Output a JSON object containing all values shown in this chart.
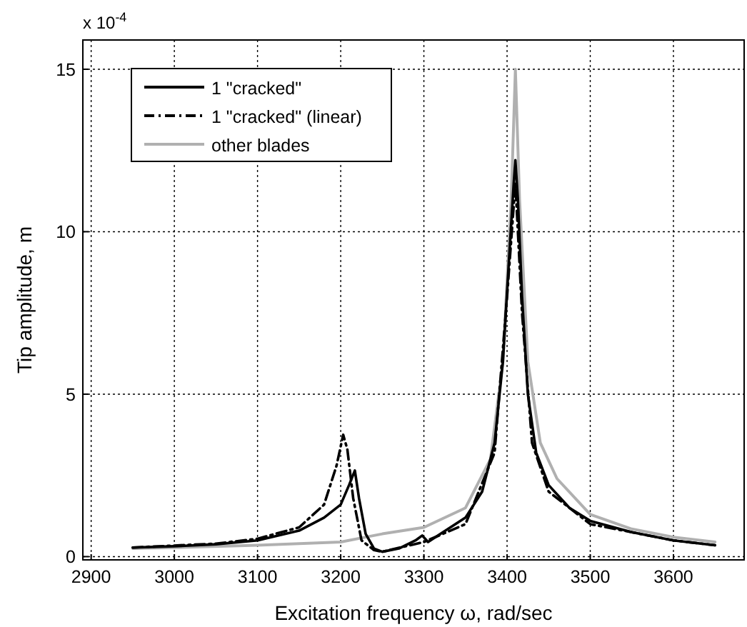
{
  "chart_data": {
    "type": "line",
    "xlabel": "Excitation frequency ω, rad/sec",
    "ylabel": "Tip amplitude, m",
    "annotations": [
      "x 10$^{-4}$"
    ],
    "xlim": [
      2890,
      3685
    ],
    "xticks": [
      2900,
      3000,
      3100,
      3200,
      3300,
      3400,
      3500,
      3600
    ],
    "ylim": [
      -0.1,
      15.9
    ],
    "yticks": [
      0,
      5,
      10,
      15
    ],
    "grid": true,
    "legend": "top left",
    "series": [
      {
        "name": "1 \"cracked\"",
        "color": "#000000",
        "line_style": "solid",
        "x": [
          2950,
          3000,
          3050,
          3100,
          3150,
          3180,
          3200,
          3210,
          3217,
          3222,
          3230,
          3240,
          3250,
          3270,
          3290,
          3298,
          3305,
          3320,
          3350,
          3370,
          3385,
          3395,
          3402,
          3408,
          3410,
          3413,
          3418,
          3425,
          3435,
          3450,
          3475,
          3500,
          3550,
          3600,
          3650
        ],
        "values": [
          0.28,
          0.32,
          0.38,
          0.5,
          0.8,
          1.2,
          1.6,
          2.2,
          2.65,
          1.8,
          0.7,
          0.25,
          0.15,
          0.25,
          0.5,
          0.65,
          0.45,
          0.7,
          1.2,
          2.0,
          3.5,
          6,
          9,
          11.5,
          12.2,
          11,
          8,
          5,
          3.2,
          2.2,
          1.5,
          1.1,
          0.75,
          0.5,
          0.35
        ]
      },
      {
        "name": "1 \"cracked\" (linear)",
        "color": "#000000",
        "line_style": "dashdot",
        "x": [
          2950,
          3050,
          3100,
          3150,
          3180,
          3195,
          3203,
          3208,
          3215,
          3225,
          3240,
          3250,
          3300,
          3350,
          3385,
          3400,
          3410,
          3418,
          3430,
          3450,
          3500,
          3600,
          3650
        ],
        "values": [
          0.28,
          0.4,
          0.55,
          0.9,
          1.6,
          2.8,
          3.75,
          3.3,
          1.8,
          0.5,
          0.2,
          0.15,
          0.45,
          1.0,
          3.2,
          8,
          11.5,
          7.5,
          3.5,
          2.0,
          1.0,
          0.5,
          0.35
        ]
      },
      {
        "name": "other blades",
        "color": "#b0b0b0",
        "line_style": "solid",
        "x": [
          2950,
          3000,
          3100,
          3200,
          3230,
          3250,
          3300,
          3350,
          3380,
          3395,
          3405,
          3410,
          3415,
          3425,
          3440,
          3460,
          3500,
          3550,
          3600,
          3650
        ],
        "values": [
          0.25,
          0.28,
          0.35,
          0.45,
          0.6,
          0.7,
          0.9,
          1.5,
          3,
          6,
          11,
          15,
          11,
          6,
          3.5,
          2.4,
          1.3,
          0.85,
          0.6,
          0.45
        ]
      }
    ]
  }
}
